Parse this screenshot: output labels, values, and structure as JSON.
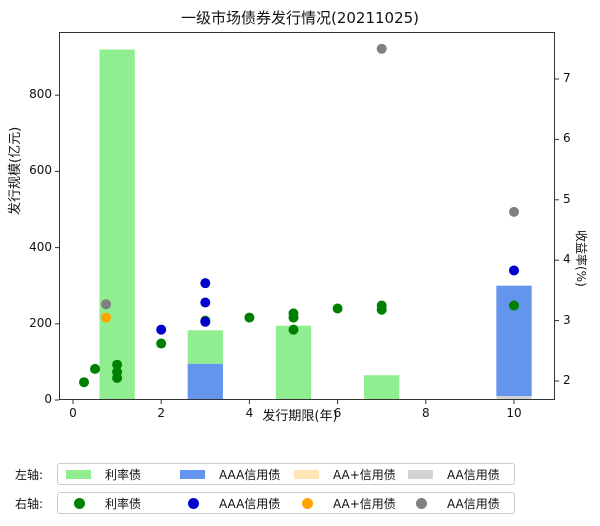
{
  "chart_data": {
    "type": "bar+scatter",
    "title": "一级市场债券发行情况(20211025)",
    "xlabel": "发行期限(年)",
    "ylabel_left": "发行规模(亿元)",
    "ylabel_right": "收益率(%)",
    "xlim": [
      -0.4,
      10.9
    ],
    "ylim_left": [
      0,
      960
    ],
    "ylim_right": [
      1.75,
      7.75
    ],
    "x_ticks": [
      0,
      2,
      4,
      6,
      8,
      10
    ],
    "y_left_ticks": [
      0,
      200,
      400,
      600,
      800
    ],
    "y_right_ticks": [
      2,
      3,
      4,
      5,
      6,
      7
    ],
    "bar_series": [
      {
        "name": "利率债",
        "color": "#90EE90",
        "x": [
          1,
          3,
          5,
          7
        ],
        "values": [
          920,
          88,
          195,
          65
        ],
        "base": [
          0,
          95,
          0,
          0
        ]
      },
      {
        "name": "AAA信用债",
        "color": "#6495ED",
        "x": [
          3,
          10
        ],
        "values": [
          95,
          290
        ],
        "base": [
          0,
          10
        ]
      },
      {
        "name": "AA+信用债",
        "color": "#FFE4B5",
        "x": [],
        "values": [],
        "base": []
      },
      {
        "name": "AA信用债",
        "color": "#D3D3D3",
        "x": [
          10
        ],
        "values": [
          10
        ],
        "base": [
          0
        ]
      }
    ],
    "scatter_series": [
      {
        "name": "利率债",
        "color": "#008000",
        "points": [
          [
            0.25,
            1.98
          ],
          [
            0.5,
            2.2
          ],
          [
            1,
            2.15
          ],
          [
            1,
            2.27
          ],
          [
            1,
            2.05
          ],
          [
            2,
            2.62
          ],
          [
            3,
            3.0
          ],
          [
            4,
            3.05
          ],
          [
            5,
            3.12
          ],
          [
            5,
            3.05
          ],
          [
            5,
            2.85
          ],
          [
            6,
            3.2
          ],
          [
            7,
            3.25
          ],
          [
            7,
            3.18
          ],
          [
            10,
            3.25
          ]
        ]
      },
      {
        "name": "AAA信用债",
        "color": "#0000CD",
        "points": [
          [
            2,
            2.85
          ],
          [
            3,
            3.62
          ],
          [
            3,
            3.3
          ],
          [
            3,
            2.98
          ],
          [
            10,
            3.83
          ]
        ]
      },
      {
        "name": "AA+信用债",
        "color": "#FFA500",
        "points": [
          [
            0.75,
            3.05
          ]
        ]
      },
      {
        "name": "AA信用债",
        "color": "#808080",
        "points": [
          [
            0.75,
            3.27
          ],
          [
            7,
            7.5
          ],
          [
            10,
            4.8
          ]
        ]
      }
    ],
    "legend_position": "bottom"
  },
  "legend": {
    "left_axis_label": "左轴:",
    "right_axis_label": "右轴:",
    "left_items": [
      {
        "label": "利率债",
        "color": "#90EE90"
      },
      {
        "label": "AAA信用债",
        "color": "#6495ED"
      },
      {
        "label": "AA+信用债",
        "color": "#FFE4B5"
      },
      {
        "label": "AA信用债",
        "color": "#D3D3D3"
      }
    ],
    "right_items": [
      {
        "label": "利率债",
        "color": "#008000"
      },
      {
        "label": "AAA信用债",
        "color": "#0000CD"
      },
      {
        "label": "AA+信用债",
        "color": "#FFA500"
      },
      {
        "label": "AA信用债",
        "color": "#808080"
      }
    ]
  }
}
